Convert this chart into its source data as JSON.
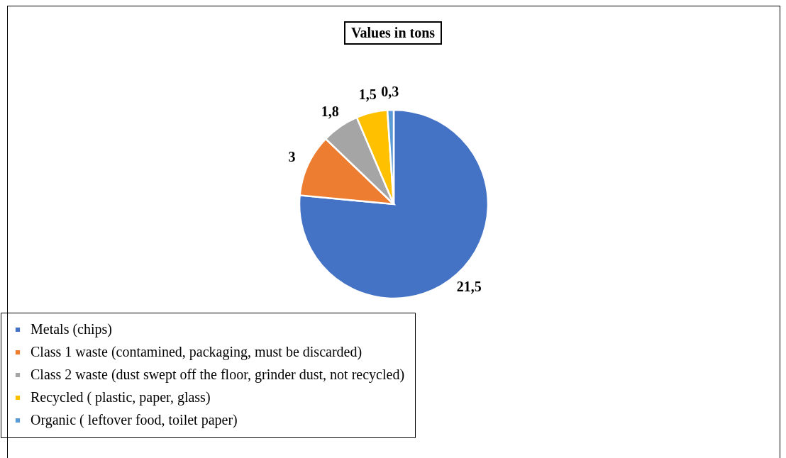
{
  "chart_data": {
    "type": "pie",
    "title": "Values in tons",
    "categories": [
      "Metals (chips)",
      "Class 1 waste (contamined, packaging, must be discarded)",
      "Class 2 waste (dust swept off the floor, grinder dust, not recycled)",
      "Recycled ( plastic, paper, glass)",
      "Organic ( leftover food, toilet paper)"
    ],
    "values": [
      21.5,
      3,
      1.8,
      1.5,
      0.3
    ],
    "value_labels": [
      "21,5",
      "3",
      "1,8",
      "1,5",
      "0,3"
    ],
    "colors": [
      "#4472c4",
      "#ed7d31",
      "#a5a5a5",
      "#ffc000",
      "#5b9bd5"
    ],
    "legend": "bottom"
  }
}
